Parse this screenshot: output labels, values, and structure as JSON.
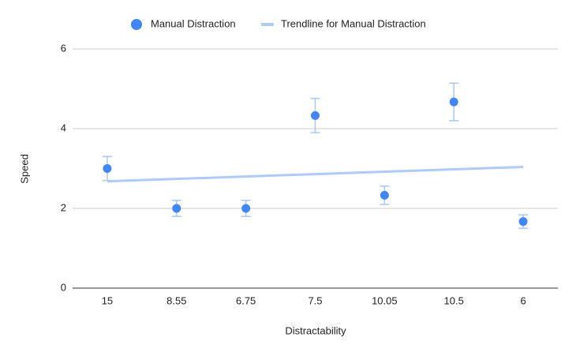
{
  "chart_data": {
    "type": "scatter",
    "x_label": "Distractability",
    "y_label": "Speed",
    "categories": [
      "15",
      "8.55",
      "6.75",
      "7.5",
      "10.05",
      "10.5",
      "6"
    ],
    "series": [
      {
        "name": "Manual Distraction",
        "color": "#4285f4",
        "values": [
          3,
          2,
          2,
          4.33,
          2.33,
          4.67,
          1.67
        ],
        "errors": [
          0.3,
          0.2,
          0.2,
          0.43,
          0.23,
          0.47,
          0.17
        ]
      }
    ],
    "trendline": {
      "name": "Trendline for Manual Distraction",
      "color": "#aecbfa",
      "values": [
        2.68,
        2.74,
        2.8,
        2.86,
        2.92,
        2.98,
        3.04
      ]
    },
    "ylim": [
      0,
      6
    ],
    "yticks": [
      0,
      2,
      4,
      6
    ],
    "grid": true,
    "legend": "top"
  }
}
